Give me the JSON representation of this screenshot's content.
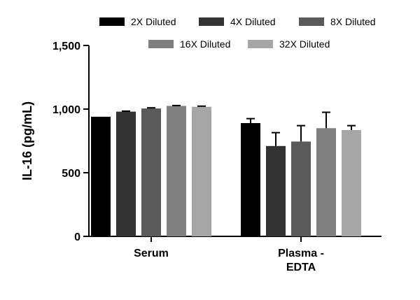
{
  "chart_data": {
    "type": "bar",
    "ylabel": "IL-16 (pg/mL)",
    "ylim": [
      0,
      1500
    ],
    "yticks": [
      "0",
      "500",
      "1,000",
      "1,500"
    ],
    "ytick_values": [
      0,
      500,
      1000,
      1500
    ],
    "categories": [
      {
        "lines": [
          "Serum"
        ]
      },
      {
        "lines": [
          "Plasma -",
          "EDTA"
        ]
      }
    ],
    "series": [
      {
        "name": "2X Diluted",
        "color": "#000000",
        "values": [
          940,
          890
        ],
        "errors": [
          0,
          35
        ]
      },
      {
        "name": "4X Diluted",
        "color": "#333333",
        "values": [
          980,
          710
        ],
        "errors": [
          4,
          105
        ]
      },
      {
        "name": "8X Diluted",
        "color": "#5a5a5a",
        "values": [
          1005,
          745
        ],
        "errors": [
          5,
          125
        ]
      },
      {
        "name": "16X Diluted",
        "color": "#808080",
        "values": [
          1025,
          850
        ],
        "errors": [
          3,
          125
        ]
      },
      {
        "name": "32X Diluted",
        "color": "#a6a6a6",
        "values": [
          1018,
          835
        ],
        "errors": [
          5,
          35
        ]
      }
    ],
    "legend": "top",
    "grid": false
  }
}
